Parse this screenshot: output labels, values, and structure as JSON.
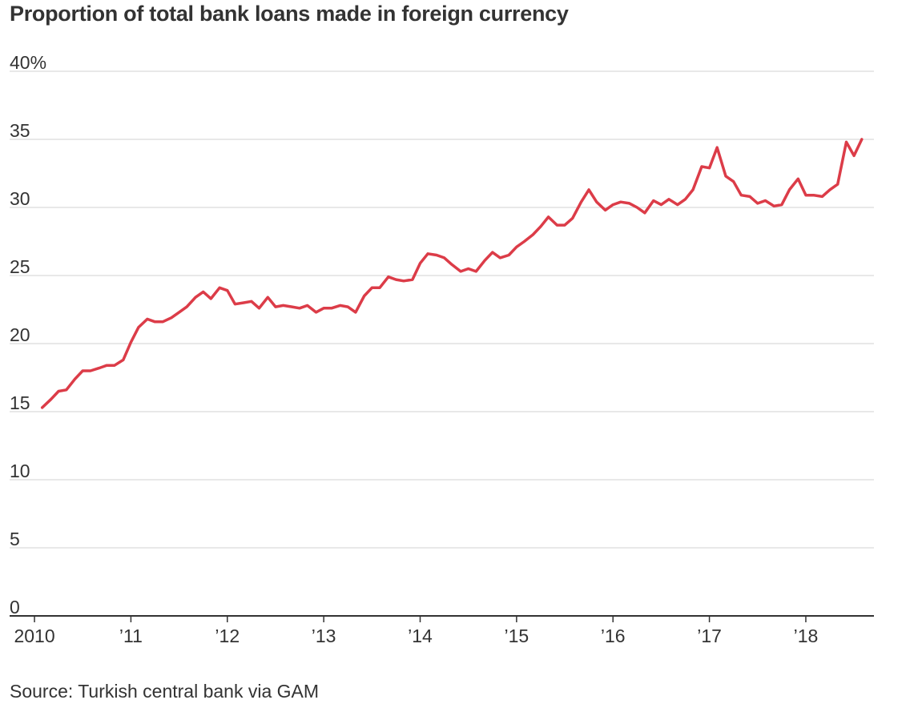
{
  "chart_data": {
    "type": "line",
    "title": "Proportion of total bank loans made in foreign currency",
    "source": "Source: Turkish central bank via GAM",
    "xlabel": "",
    "ylabel": "",
    "xlim": [
      2009.85,
      2018.69
    ],
    "ylim": [
      0,
      40
    ],
    "y_ticks": [
      {
        "value": 40,
        "label": "40%"
      },
      {
        "value": 35,
        "label": "35"
      },
      {
        "value": 30,
        "label": "30"
      },
      {
        "value": 25,
        "label": "25"
      },
      {
        "value": 20,
        "label": "20"
      },
      {
        "value": 15,
        "label": "15"
      },
      {
        "value": 10,
        "label": "10"
      },
      {
        "value": 5,
        "label": "5"
      },
      {
        "value": 0,
        "label": "0"
      }
    ],
    "x_ticks": [
      {
        "value": 2010,
        "label": "2010"
      },
      {
        "value": 2011,
        "label": "’11"
      },
      {
        "value": 2012,
        "label": "’12"
      },
      {
        "value": 2013,
        "label": "’13"
      },
      {
        "value": 2014,
        "label": "’14"
      },
      {
        "value": 2015,
        "label": "’15"
      },
      {
        "value": 2016,
        "label": "’16"
      },
      {
        "value": 2017,
        "label": "’17"
      },
      {
        "value": 2018,
        "label": "’18"
      }
    ],
    "grid": true,
    "colors": {
      "line": "#dc3c48",
      "grid": "#d9d9d9",
      "axis": "#333333",
      "text": "#333333"
    },
    "series": [
      {
        "x": [
          2010.08,
          2010.17,
          2010.25,
          2010.33,
          2010.42,
          2010.5,
          2010.58,
          2010.67,
          2010.75,
          2010.83,
          2010.92,
          2011.0,
          2011.08,
          2011.17,
          2011.25,
          2011.33,
          2011.42,
          2011.5,
          2011.58,
          2011.67,
          2011.75,
          2011.83,
          2011.92,
          2012.0,
          2012.08,
          2012.17,
          2012.25,
          2012.33,
          2012.42,
          2012.5,
          2012.58,
          2012.67,
          2012.75,
          2012.83,
          2012.92,
          2013.0,
          2013.08,
          2013.17,
          2013.25,
          2013.33,
          2013.42,
          2013.5,
          2013.58,
          2013.67,
          2013.75,
          2013.83,
          2013.92,
          2014.0,
          2014.08,
          2014.17,
          2014.25,
          2014.33,
          2014.42,
          2014.5,
          2014.58,
          2014.67,
          2014.75,
          2014.83,
          2014.92,
          2015.0,
          2015.08,
          2015.17,
          2015.25,
          2015.33,
          2015.42,
          2015.5,
          2015.58,
          2015.67,
          2015.75,
          2015.83,
          2015.92,
          2016.0,
          2016.08,
          2016.17,
          2016.25,
          2016.33,
          2016.42,
          2016.5,
          2016.58,
          2016.67,
          2016.75,
          2016.83,
          2016.92,
          2017.0,
          2017.08,
          2017.17,
          2017.25,
          2017.33,
          2017.42,
          2017.5,
          2017.58,
          2017.67,
          2017.75,
          2017.83,
          2017.92,
          2018.0,
          2018.08,
          2018.17,
          2018.25,
          2018.33,
          2018.42,
          2018.5,
          2018.58
        ],
        "values": [
          15.3,
          15.9,
          16.5,
          16.6,
          17.4,
          18.0,
          18.0,
          18.2,
          18.4,
          18.4,
          18.8,
          20.1,
          21.2,
          21.8,
          21.6,
          21.6,
          21.9,
          22.3,
          22.7,
          23.4,
          23.8,
          23.3,
          24.1,
          23.9,
          22.9,
          23.0,
          23.1,
          22.6,
          23.4,
          22.7,
          22.8,
          22.7,
          22.6,
          22.8,
          22.3,
          22.6,
          22.6,
          22.8,
          22.7,
          22.3,
          23.5,
          24.1,
          24.1,
          24.9,
          24.7,
          24.6,
          24.7,
          25.9,
          26.6,
          26.5,
          26.3,
          25.8,
          25.3,
          25.5,
          25.3,
          26.1,
          26.7,
          26.3,
          26.5,
          27.1,
          27.5,
          28.0,
          28.6,
          29.3,
          28.7,
          28.7,
          29.2,
          30.4,
          31.3,
          30.4,
          29.8,
          30.2,
          30.4,
          30.3,
          30.0,
          29.6,
          30.5,
          30.2,
          30.6,
          30.2,
          30.6,
          31.3,
          33.0,
          32.9,
          34.4,
          32.3,
          31.9,
          30.9,
          30.8,
          30.3,
          30.5,
          30.1,
          30.2,
          31.3,
          32.1,
          30.9,
          30.9,
          30.8,
          31.3,
          31.7,
          34.8,
          33.8,
          35.0
        ]
      }
    ]
  }
}
